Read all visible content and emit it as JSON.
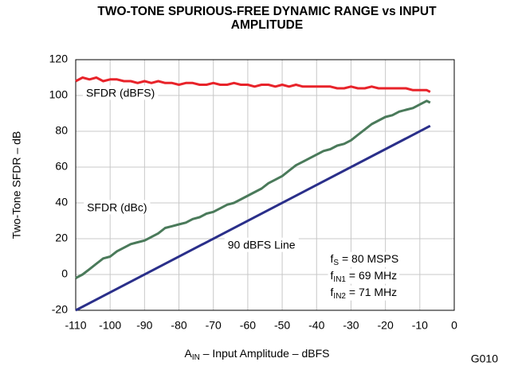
{
  "chart_data": {
    "type": "line",
    "title": "TWO-TONE SPURIOUS-FREE DYNAMIC RANGE vs INPUT AMPLITUDE",
    "ylabel": "Two-Tone SFDR – dB",
    "xlabel": [
      "A",
      "IN",
      " – Input Amplitude – dBFS"
    ],
    "code": "G010",
    "xlim": [
      -110,
      0
    ],
    "xticks": [
      -110,
      -100,
      -90,
      -80,
      -70,
      -60,
      -50,
      -40,
      -30,
      -20,
      -10,
      0
    ],
    "ylim": [
      -20,
      120
    ],
    "yticks": [
      -20,
      0,
      20,
      40,
      60,
      80,
      100,
      120
    ],
    "grid": true,
    "annotations": [
      "SFDR (dBFS)",
      "SFDR (dBc)",
      "90 dBFS Line"
    ],
    "notes": [
      [
        "f",
        "S",
        " = 80 MSPS"
      ],
      [
        "f",
        "IN1",
        " = 69 MHz"
      ],
      [
        "f",
        "IN2",
        " = 71 MHz"
      ]
    ],
    "series": [
      {
        "name": "SFDR (dBFS)",
        "color": "#e8232a",
        "x": [
          -110,
          -108,
          -106,
          -104,
          -102,
          -100,
          -98,
          -96,
          -94,
          -92,
          -90,
          -88,
          -86,
          -84,
          -82,
          -80,
          -78,
          -76,
          -74,
          -72,
          -70,
          -68,
          -66,
          -64,
          -62,
          -60,
          -58,
          -56,
          -54,
          -52,
          -50,
          -48,
          -46,
          -44,
          -42,
          -40,
          -38,
          -36,
          -34,
          -32,
          -30,
          -28,
          -26,
          -24,
          -22,
          -20,
          -18,
          -16,
          -14,
          -12,
          -10,
          -8,
          -7
        ],
        "values": [
          108,
          110,
          109,
          110,
          108,
          109,
          109,
          108,
          108,
          107,
          108,
          107,
          108,
          107,
          107,
          106,
          107,
          107,
          106,
          106,
          107,
          106,
          106,
          107,
          106,
          106,
          105,
          106,
          106,
          105,
          106,
          105,
          106,
          105,
          105,
          105,
          105,
          105,
          104,
          104,
          105,
          104,
          104,
          105,
          104,
          104,
          104,
          104,
          104,
          103,
          103,
          103,
          102
        ]
      },
      {
        "name": "SFDR (dBc)",
        "color": "#4a7a5a",
        "x": [
          -110,
          -108,
          -106,
          -104,
          -102,
          -100,
          -98,
          -96,
          -94,
          -92,
          -90,
          -88,
          -86,
          -84,
          -82,
          -80,
          -78,
          -76,
          -74,
          -72,
          -70,
          -68,
          -66,
          -64,
          -62,
          -60,
          -58,
          -56,
          -54,
          -52,
          -50,
          -48,
          -46,
          -44,
          -42,
          -40,
          -38,
          -36,
          -34,
          -32,
          -30,
          -28,
          -26,
          -24,
          -22,
          -20,
          -18,
          -16,
          -14,
          -12,
          -10,
          -8,
          -7
        ],
        "values": [
          -2,
          0,
          3,
          6,
          9,
          10,
          13,
          15,
          17,
          18,
          19,
          21,
          23,
          26,
          27,
          28,
          29,
          31,
          32,
          34,
          35,
          37,
          39,
          40,
          42,
          44,
          46,
          48,
          51,
          53,
          55,
          58,
          61,
          63,
          65,
          67,
          69,
          70,
          72,
          73,
          75,
          78,
          81,
          84,
          86,
          88,
          89,
          91,
          92,
          93,
          95,
          97,
          96
        ]
      },
      {
        "name": "90 dBFS Line",
        "color": "#2a2f8a",
        "x": [
          -110,
          -7
        ],
        "values": [
          -20,
          83
        ]
      }
    ]
  }
}
